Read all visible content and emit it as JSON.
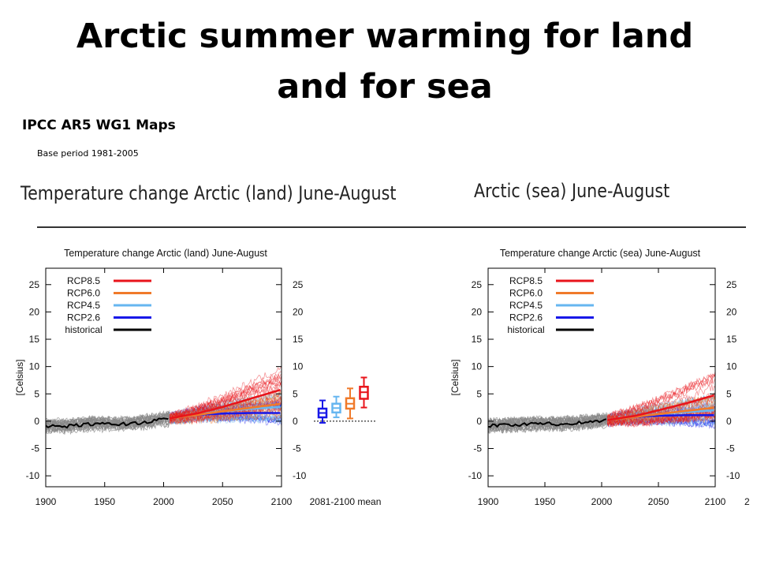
{
  "slide": {
    "title_line1": "Arctic summer warming for land",
    "title_line2": "and for sea",
    "source": "IPCC AR5 WG1 Maps",
    "base_period": "Base  period 1981-2005"
  },
  "banners": {
    "left": "Temperature change Arctic (land) June-August",
    "right": "Arctic (sea) June-August"
  },
  "colors": {
    "rcp85": "#e8141b",
    "rcp60": "#f07a2a",
    "rcp45": "#66b6f0",
    "rcp26": "#1818e8",
    "historical": "#000000",
    "spread_hist": "#888888"
  },
  "chart_data": [
    {
      "type": "line",
      "title": "Temperature change Arctic (land) June-August",
      "ylabel": "[Celsius]",
      "xlim": [
        1900,
        2100
      ],
      "ylim": [
        -12,
        28
      ],
      "xticks": [
        1900,
        1950,
        2000,
        2050,
        2100
      ],
      "yticks": [
        -10,
        -5,
        0,
        5,
        10,
        15,
        20,
        25
      ],
      "legend_position": "top-left",
      "legend": [
        "RCP8.5",
        "RCP6.0",
        "RCP4.5",
        "RCP2.6",
        "historical"
      ],
      "series": [
        {
          "name": "historical",
          "x": [
            1900,
            1920,
            1940,
            1960,
            1980,
            2005
          ],
          "y": [
            -1.0,
            -0.9,
            -0.5,
            -0.6,
            -0.3,
            0.5
          ]
        },
        {
          "name": "RCP2.6",
          "x": [
            2005,
            2030,
            2050,
            2075,
            2100
          ],
          "y": [
            0.5,
            1.2,
            1.4,
            1.5,
            1.5
          ]
        },
        {
          "name": "RCP4.5",
          "x": [
            2005,
            2030,
            2050,
            2075,
            2100
          ],
          "y": [
            0.5,
            1.3,
            1.8,
            2.3,
            2.6
          ]
        },
        {
          "name": "RCP6.0",
          "x": [
            2005,
            2030,
            2050,
            2075,
            2100
          ],
          "y": [
            0.5,
            1.2,
            1.8,
            2.5,
            3.2
          ]
        },
        {
          "name": "RCP8.5",
          "x": [
            2005,
            2030,
            2050,
            2075,
            2100
          ],
          "y": [
            0.5,
            1.5,
            2.6,
            4.2,
            5.8
          ]
        }
      ],
      "box_label": "2081-2100 mean",
      "boxes": [
        {
          "name": "RCP2.6",
          "mean": 1.5,
          "q1": 0.7,
          "q3": 2.3,
          "min": -0.3,
          "max": 3.8
        },
        {
          "name": "RCP4.5",
          "mean": 2.4,
          "q1": 1.6,
          "q3": 3.2,
          "min": 0.7,
          "max": 4.5
        },
        {
          "name": "RCP6.0",
          "mean": 3.2,
          "q1": 2.3,
          "q3": 4.2,
          "min": 0.5,
          "max": 6.0
        },
        {
          "name": "RCP8.5",
          "mean": 5.3,
          "q1": 4.1,
          "q3": 6.3,
          "min": 2.5,
          "max": 8.0
        }
      ]
    },
    {
      "type": "line",
      "title": "Temperature change Arctic (sea) June-August",
      "ylabel": "[Celsius]",
      "xlim": [
        1900,
        2100
      ],
      "ylim": [
        -12,
        28
      ],
      "xticks": [
        1900,
        1950,
        2000,
        2050,
        2100
      ],
      "yticks": [
        -10,
        -5,
        0,
        5,
        10,
        15,
        20,
        25
      ],
      "legend_position": "top-left",
      "legend": [
        "RCP8.5",
        "RCP6.0",
        "RCP4.5",
        "RCP2.6",
        "historical"
      ],
      "series": [
        {
          "name": "historical",
          "x": [
            1900,
            1920,
            1940,
            1960,
            1980,
            2005
          ],
          "y": [
            -0.8,
            -0.7,
            -0.5,
            -0.5,
            -0.3,
            0.2
          ]
        },
        {
          "name": "RCP2.6",
          "x": [
            2005,
            2030,
            2050,
            2075,
            2100
          ],
          "y": [
            0.2,
            0.8,
            1.0,
            1.1,
            1.1
          ]
        },
        {
          "name": "RCP4.5",
          "x": [
            2005,
            2030,
            2050,
            2075,
            2100
          ],
          "y": [
            0.2,
            0.9,
            1.3,
            1.7,
            2.0
          ]
        },
        {
          "name": "RCP6.0",
          "x": [
            2005,
            2030,
            2050,
            2075,
            2100
          ],
          "y": [
            0.2,
            0.8,
            1.3,
            1.9,
            2.5
          ]
        },
        {
          "name": "RCP8.5",
          "x": [
            2005,
            2030,
            2050,
            2075,
            2100
          ],
          "y": [
            0.2,
            1.0,
            2.0,
            3.3,
            4.8
          ]
        }
      ],
      "partial_tick_label": "2"
    }
  ]
}
